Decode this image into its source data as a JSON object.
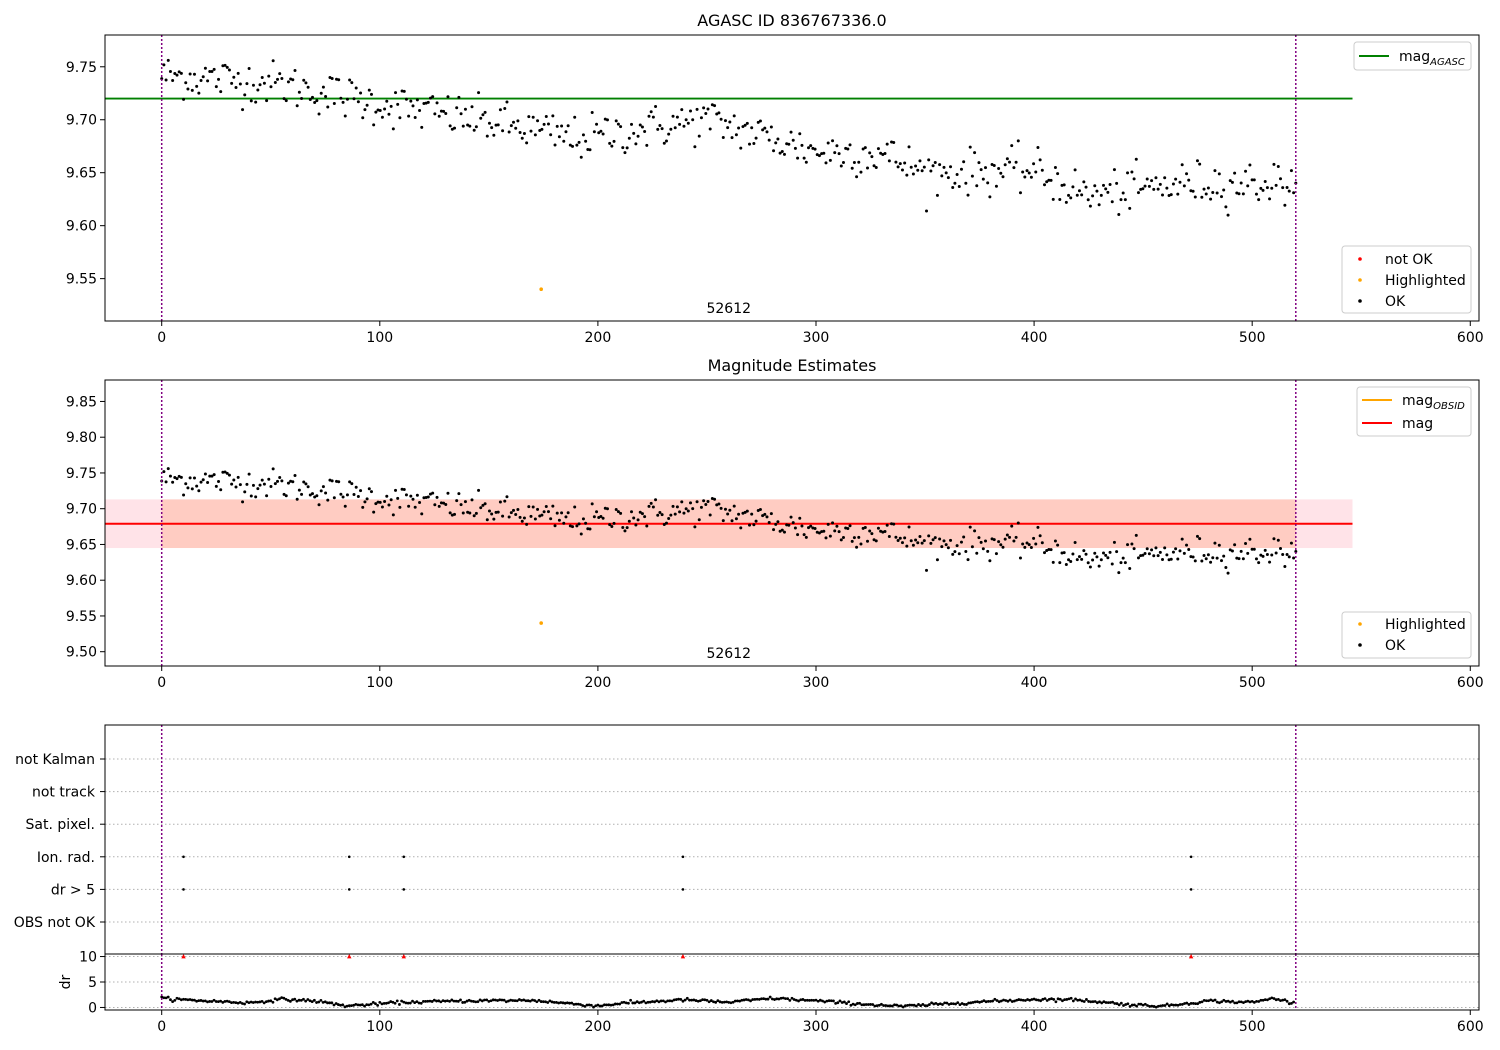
{
  "chart_data": [
    {
      "type": "scatter",
      "title": "AGASC ID 836767336.0",
      "xlim": [
        -26,
        604
      ],
      "ylim": [
        9.51,
        9.78
      ],
      "xticks": [
        0,
        100,
        200,
        300,
        400,
        500,
        600
      ],
      "yticks": [
        9.55,
        9.6,
        9.65,
        9.7,
        9.75
      ],
      "obs_bounds": [
        0,
        520
      ],
      "obs_label": "52612",
      "obs_label_x": 260,
      "grid": false,
      "hlines": [
        {
          "name": "mag",
          "subscript": "AGASC",
          "value": 9.72,
          "x0": -26,
          "x1": 546,
          "color": "#008000"
        }
      ],
      "series_styles": {
        "OK": "#000000",
        "Highlighted": "#ffa500",
        "not OK": "#ff0000"
      },
      "highlighted_points": [
        [
          174,
          9.54
        ]
      ],
      "not_ok_points": [],
      "ok_trend": {
        "n": 520,
        "x0": 0,
        "x1": 520,
        "y0": 9.735,
        "y1": 9.635,
        "noise": 0.013
      },
      "ok_wave": [
        [
          0,
          9.742
        ],
        [
          50,
          9.735
        ],
        [
          100,
          9.715
        ],
        [
          150,
          9.698
        ],
        [
          190,
          9.682
        ],
        [
          250,
          9.7
        ],
        [
          300,
          9.67
        ],
        [
          330,
          9.668
        ],
        [
          350,
          9.65
        ],
        [
          400,
          9.652
        ],
        [
          425,
          9.628
        ],
        [
          470,
          9.64
        ],
        [
          520,
          9.64
        ]
      ],
      "legend_lines": [
        {
          "label": "mag",
          "subscript": "AGASC",
          "color": "#008000"
        }
      ],
      "legend_markers": [
        {
          "label": "not OK",
          "color": "#ff0000"
        },
        {
          "label": "Highlighted",
          "color": "#ffa500"
        },
        {
          "label": "OK",
          "color": "#000000"
        }
      ]
    },
    {
      "type": "scatter",
      "title": "Magnitude Estimates",
      "xlim": [
        -26,
        604
      ],
      "ylim": [
        9.48,
        9.88
      ],
      "xticks": [
        0,
        100,
        200,
        300,
        400,
        500,
        600
      ],
      "yticks": [
        9.5,
        9.55,
        9.6,
        9.65,
        9.7,
        9.75,
        9.8,
        9.85
      ],
      "obs_bounds": [
        0,
        520
      ],
      "obs_label": "52612",
      "obs_label_x": 260,
      "grid": false,
      "band": {
        "y0": 9.645,
        "y1": 9.713,
        "x0": -26,
        "x1": 546,
        "color": "#ffc0cb"
      },
      "band_obsid": {
        "y0": 9.645,
        "y1": 9.713,
        "x0": 0,
        "x1": 520,
        "color": "#ffa07a"
      },
      "hlines": [
        {
          "name": "mag",
          "value": 9.679,
          "x0": -26,
          "x1": 546,
          "color": "#ff0000"
        }
      ],
      "highlighted_points": [
        [
          174,
          9.54
        ]
      ],
      "legend_lines": [
        {
          "label": "mag",
          "subscript": "OBSID",
          "color": "#ffa500"
        },
        {
          "label": "mag",
          "subscript": "",
          "color": "#ff0000"
        }
      ],
      "legend_markers": [
        {
          "label": "Highlighted",
          "color": "#ffa500"
        },
        {
          "label": "OK",
          "color": "#000000"
        }
      ]
    },
    {
      "type": "scatter",
      "title": "",
      "xlim": [
        -26,
        604
      ],
      "categories": [
        "not Kalman",
        "not track",
        "Sat. pixel.",
        "Ion. rad.",
        "dr > 5",
        "OBS not OK"
      ],
      "flag_points": {
        "Ion. rad.": [
          10,
          86,
          111,
          239,
          472
        ],
        "dr > 5": [
          10,
          86,
          111,
          239,
          472
        ]
      },
      "obs_bounds": [
        0,
        520
      ],
      "grid": true
    },
    {
      "type": "scatter",
      "title": "",
      "ylabel": "dr",
      "xlim": [
        -26,
        604
      ],
      "ylim": [
        -0.5,
        10.5
      ],
      "xticks": [
        0,
        100,
        200,
        300,
        400,
        500,
        600
      ],
      "yticks": [
        0,
        5,
        10
      ],
      "obs_bounds": [
        0,
        520
      ],
      "grid": true,
      "outlier_points": [
        [
          10,
          10
        ],
        [
          86,
          10
        ],
        [
          111,
          10
        ],
        [
          239,
          10
        ],
        [
          472,
          10
        ]
      ],
      "dr_trend_wave": [
        [
          0,
          1.8
        ],
        [
          10,
          1.5
        ],
        [
          25,
          1.2
        ],
        [
          40,
          0.9
        ],
        [
          55,
          1.6
        ],
        [
          70,
          1.3
        ],
        [
          85,
          0.3
        ],
        [
          110,
          1.0
        ],
        [
          140,
          1.3
        ],
        [
          170,
          1.4
        ],
        [
          200,
          0.3
        ],
        [
          210,
          0.8
        ],
        [
          240,
          1.5
        ],
        [
          260,
          1.0
        ],
        [
          280,
          1.8
        ],
        [
          300,
          1.3
        ],
        [
          320,
          0.7
        ],
        [
          340,
          0.2
        ],
        [
          370,
          1.0
        ],
        [
          400,
          1.6
        ],
        [
          420,
          1.5
        ],
        [
          445,
          0.5
        ],
        [
          460,
          0.3
        ],
        [
          480,
          1.3
        ],
        [
          500,
          1.0
        ],
        [
          510,
          1.8
        ],
        [
          520,
          0.8
        ]
      ]
    }
  ]
}
